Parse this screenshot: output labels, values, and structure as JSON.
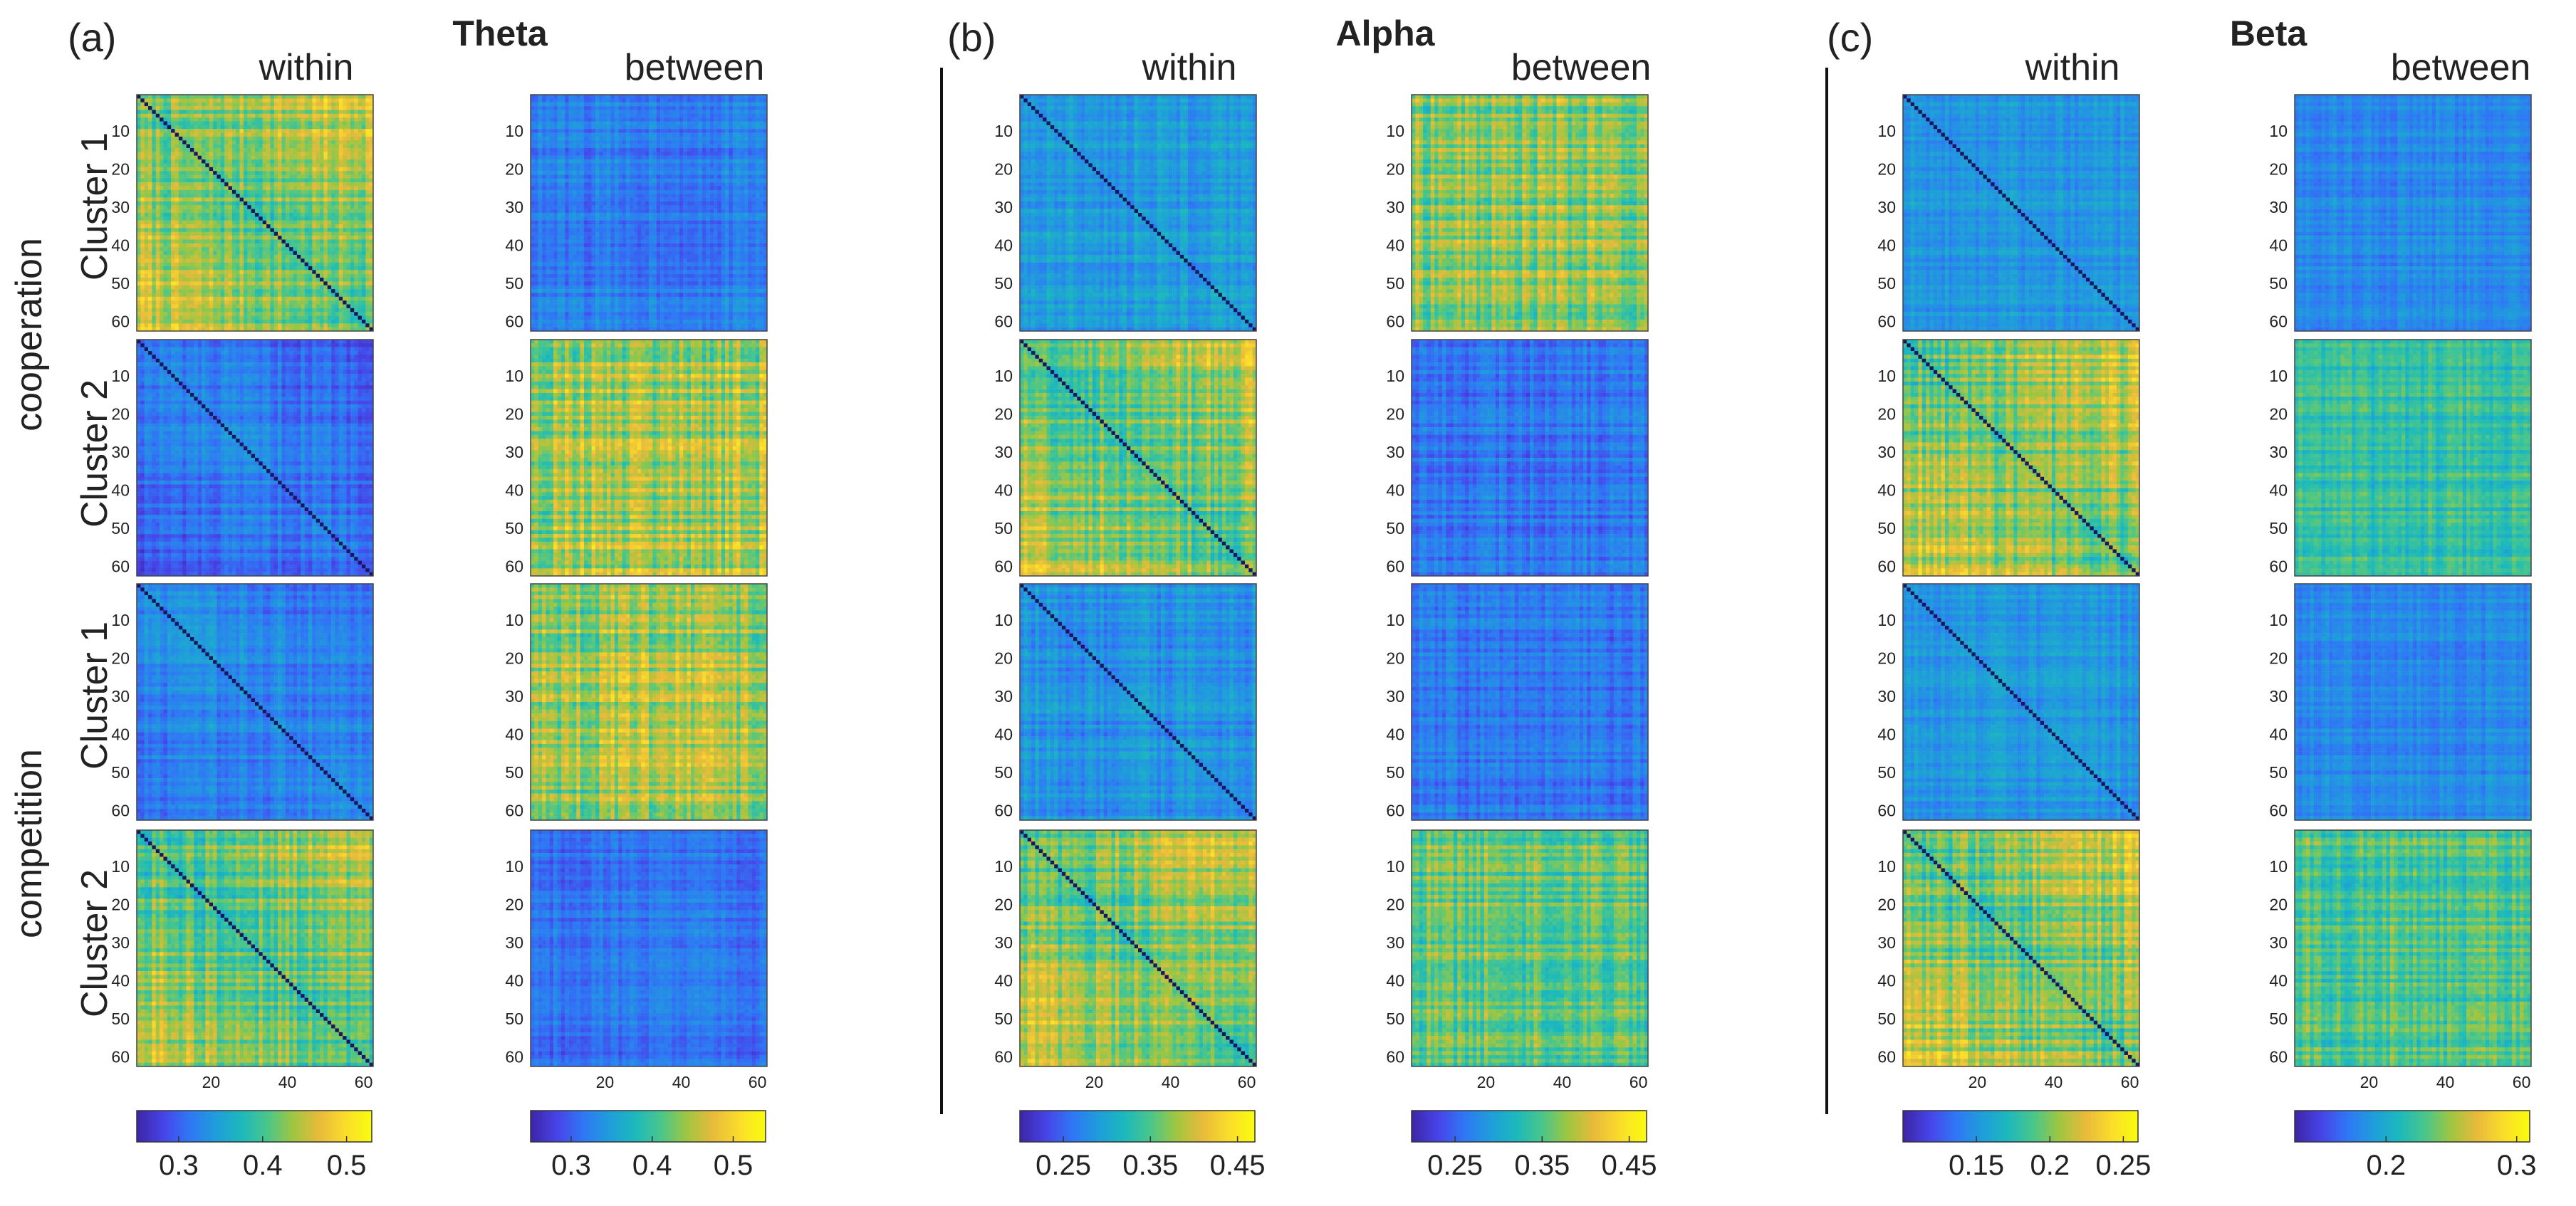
{
  "figure": {
    "row_group_labels": [
      "cooperation",
      "competition"
    ],
    "row_labels": [
      "Cluster 1",
      "Cluster 2",
      "Cluster 1",
      "Cluster 2"
    ],
    "column_labels": [
      "within",
      "between"
    ],
    "bands": [
      {
        "letter": "(a)",
        "title": "Theta"
      },
      {
        "letter": "(b)",
        "title": "Alpha"
      },
      {
        "letter": "(c)",
        "title": "Beta"
      }
    ]
  },
  "chart_data": {
    "type": "heatmap",
    "description": "EEG connectivity matrices (62 x 62 channels), within- and between-brain, per cluster and condition",
    "matrix_size": 62,
    "axis_ticks_y": [
      "10",
      "20",
      "30",
      "40",
      "50",
      "60"
    ],
    "axis_ticks_x": [
      "20",
      "40",
      "60"
    ],
    "colormap": [
      "#3E26A8",
      "#4744E8",
      "#2F77F5",
      "#1F9DDB",
      "#1CB9BC",
      "#49C68B",
      "#9FC641",
      "#E8BA3B",
      "#FADC2B",
      "#F9FB0E"
    ],
    "panels": [
      {
        "band": "Theta",
        "type": "within",
        "colorbar_range": [
          0.25,
          0.53
        ],
        "colorbar_ticks": [
          0.3,
          0.4,
          0.5
        ],
        "colorbar_labels": [
          "0.3",
          "0.4",
          "0.5"
        ],
        "matrices": [
          {
            "condition": "cooperation",
            "cluster": "Cluster 1",
            "mean": 0.43,
            "spread": 0.05,
            "gradient": "high-corners"
          },
          {
            "condition": "cooperation",
            "cluster": "Cluster 2",
            "mean": 0.31,
            "spread": 0.03,
            "gradient": "low-corners"
          },
          {
            "condition": "competition",
            "cluster": "Cluster 1",
            "mean": 0.32,
            "spread": 0.03,
            "gradient": "low-corners"
          },
          {
            "condition": "competition",
            "cluster": "Cluster 2",
            "mean": 0.42,
            "spread": 0.05,
            "gradient": "high-corners"
          }
        ]
      },
      {
        "band": "Theta",
        "type": "between",
        "colorbar_range": [
          0.25,
          0.54
        ],
        "colorbar_ticks": [
          0.3,
          0.4,
          0.5
        ],
        "colorbar_labels": [
          "0.3",
          "0.4",
          "0.5"
        ],
        "matrices": [
          {
            "condition": "cooperation",
            "cluster": "Cluster 1",
            "mean": 0.32,
            "spread": 0.03,
            "gradient": "flat"
          },
          {
            "condition": "cooperation",
            "cluster": "Cluster 2",
            "mean": 0.45,
            "spread": 0.06,
            "gradient": "flat"
          },
          {
            "condition": "competition",
            "cluster": "Cluster 1",
            "mean": 0.44,
            "spread": 0.06,
            "gradient": "flat"
          },
          {
            "condition": "competition",
            "cluster": "Cluster 2",
            "mean": 0.31,
            "spread": 0.03,
            "gradient": "flat"
          }
        ]
      },
      {
        "band": "Alpha",
        "type": "within",
        "colorbar_range": [
          0.2,
          0.47
        ],
        "colorbar_ticks": [
          0.25,
          0.35,
          0.45
        ],
        "colorbar_labels": [
          "0.25",
          "0.35",
          "0.45"
        ],
        "matrices": [
          {
            "condition": "cooperation",
            "cluster": "Cluster 1",
            "mean": 0.29,
            "spread": 0.03,
            "gradient": "flat"
          },
          {
            "condition": "cooperation",
            "cluster": "Cluster 2",
            "mean": 0.37,
            "spread": 0.05,
            "gradient": "high-corners"
          },
          {
            "condition": "competition",
            "cluster": "Cluster 1",
            "mean": 0.28,
            "spread": 0.03,
            "gradient": "flat"
          },
          {
            "condition": "competition",
            "cluster": "Cluster 2",
            "mean": 0.37,
            "spread": 0.05,
            "gradient": "high-corners"
          }
        ]
      },
      {
        "band": "Alpha",
        "type": "between",
        "colorbar_range": [
          0.2,
          0.47
        ],
        "colorbar_ticks": [
          0.25,
          0.35,
          0.45
        ],
        "colorbar_labels": [
          "0.25",
          "0.35",
          "0.45"
        ],
        "matrices": [
          {
            "condition": "cooperation",
            "cluster": "Cluster 1",
            "mean": 0.37,
            "spread": 0.05,
            "gradient": "flat"
          },
          {
            "condition": "cooperation",
            "cluster": "Cluster 2",
            "mean": 0.26,
            "spread": 0.03,
            "gradient": "flat"
          },
          {
            "condition": "competition",
            "cluster": "Cluster 1",
            "mean": 0.26,
            "spread": 0.03,
            "gradient": "flat"
          },
          {
            "condition": "competition",
            "cluster": "Cluster 2",
            "mean": 0.36,
            "spread": 0.05,
            "gradient": "flat"
          }
        ]
      },
      {
        "band": "Beta",
        "type": "within",
        "colorbar_range": [
          0.1,
          0.26
        ],
        "colorbar_ticks": [
          0.15,
          0.2,
          0.25
        ],
        "colorbar_labels": [
          "0.15",
          "0.2",
          "0.25"
        ],
        "matrices": [
          {
            "condition": "cooperation",
            "cluster": "Cluster 1",
            "mean": 0.15,
            "spread": 0.015,
            "gradient": "flat"
          },
          {
            "condition": "cooperation",
            "cluster": "Cluster 2",
            "mean": 0.2,
            "spread": 0.03,
            "gradient": "high-corners"
          },
          {
            "condition": "competition",
            "cluster": "Cluster 1",
            "mean": 0.15,
            "spread": 0.015,
            "gradient": "flat"
          },
          {
            "condition": "competition",
            "cluster": "Cluster 2",
            "mean": 0.2,
            "spread": 0.03,
            "gradient": "high-corners"
          }
        ]
      },
      {
        "band": "Beta",
        "type": "between",
        "colorbar_range": [
          0.13,
          0.31
        ],
        "colorbar_ticks": [
          0.2,
          0.3
        ],
        "colorbar_labels": [
          "0.2",
          "0.3"
        ],
        "matrices": [
          {
            "condition": "cooperation",
            "cluster": "Cluster 1",
            "mean": 0.18,
            "spread": 0.015,
            "gradient": "flat"
          },
          {
            "condition": "cooperation",
            "cluster": "Cluster 2",
            "mean": 0.22,
            "spread": 0.025,
            "gradient": "flat"
          },
          {
            "condition": "competition",
            "cluster": "Cluster 1",
            "mean": 0.18,
            "spread": 0.015,
            "gradient": "flat"
          },
          {
            "condition": "competition",
            "cluster": "Cluster 2",
            "mean": 0.23,
            "spread": 0.03,
            "gradient": "flat"
          }
        ]
      }
    ]
  }
}
